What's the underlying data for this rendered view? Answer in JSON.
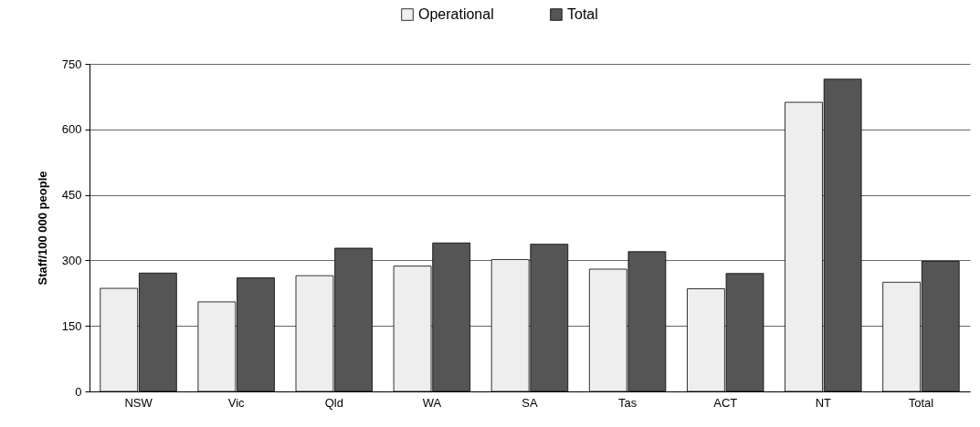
{
  "chart_data": {
    "type": "bar",
    "ylabel": "Staff/100 000 people",
    "categories": [
      "NSW",
      "Vic",
      "Qld",
      "WA",
      "SA",
      "Tas",
      "ACT",
      "NT",
      "Total"
    ],
    "series": [
      {
        "name": "Operational",
        "color": "#eeeeee",
        "values": [
          236,
          205,
          265,
          287,
          302,
          280,
          235,
          662,
          250
        ]
      },
      {
        "name": "Total",
        "color": "#555555",
        "values": [
          271,
          260,
          328,
          340,
          337,
          320,
          270,
          715,
          298
        ]
      }
    ],
    "ylim": [
      0,
      750
    ],
    "yticks": [
      0,
      150,
      300,
      450,
      600,
      750
    ],
    "grid": "y",
    "legend": "top"
  }
}
